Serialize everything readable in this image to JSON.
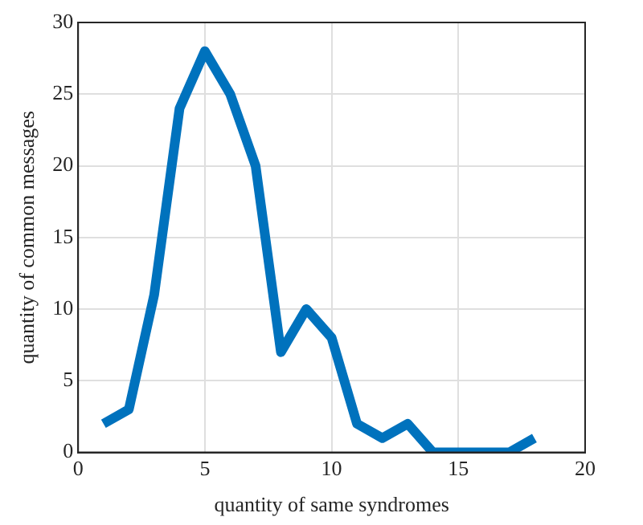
{
  "chart_data": {
    "type": "line",
    "xlabel": "quantity of same syndromes",
    "ylabel": "quantity of common messages",
    "x": [
      1,
      2,
      3,
      4,
      5,
      6,
      7,
      8,
      9,
      10,
      11,
      12,
      13,
      14,
      15,
      16,
      17,
      18
    ],
    "series": [
      {
        "color": "#0072bd",
        "values": [
          2,
          3,
          11,
          24,
          28,
          25,
          20,
          7,
          10,
          8,
          2,
          1,
          2,
          0,
          0,
          0,
          0,
          1
        ]
      }
    ],
    "xlim": [
      0,
      20
    ],
    "xticks": [
      0,
      5,
      10,
      15,
      20
    ],
    "ylim": [
      0,
      30
    ],
    "yticks": [
      0,
      5,
      10,
      15,
      20,
      25,
      30
    ],
    "grid": true,
    "legend": false,
    "marker": "none",
    "line_style": "solid"
  }
}
